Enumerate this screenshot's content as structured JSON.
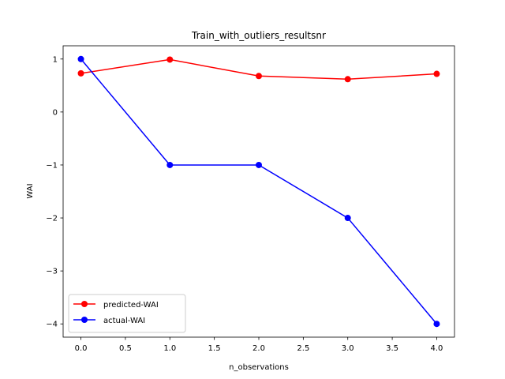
{
  "chart_data": {
    "type": "line",
    "title": "Train_with_outliers_resultsnr",
    "xlabel": "n_observations",
    "ylabel": "WAI",
    "xlim": [
      -0.2,
      4.2
    ],
    "ylim": [
      -4.25,
      1.25
    ],
    "xticks": [
      0.0,
      0.5,
      1.0,
      1.5,
      2.0,
      2.5,
      3.0,
      3.5,
      4.0
    ],
    "xtick_labels": [
      "0.0",
      "0.5",
      "1.0",
      "1.5",
      "2.0",
      "2.5",
      "3.0",
      "3.5",
      "4.0"
    ],
    "yticks": [
      1,
      0,
      -1,
      -2,
      -3,
      -4
    ],
    "ytick_labels": [
      "1",
      "0",
      "−1",
      "−2",
      "−3",
      "−4"
    ],
    "grid": false,
    "legend_position": "lower-left",
    "x": [
      0,
      1,
      2,
      3,
      4
    ],
    "series": [
      {
        "name": "predicted-WAI",
        "color": "#ff0000",
        "marker": "circle",
        "values": [
          0.73,
          0.99,
          0.68,
          0.62,
          0.72
        ]
      },
      {
        "name": "actual-WAI",
        "color": "#0000ff",
        "marker": "circle",
        "values": [
          1,
          -1,
          -1,
          -2,
          -4
        ]
      }
    ]
  }
}
